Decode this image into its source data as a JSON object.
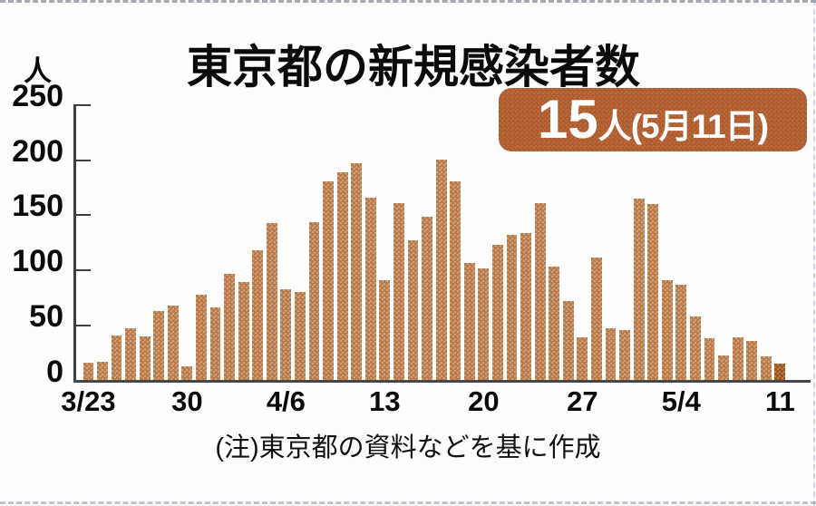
{
  "header": {
    "title": "東京都の新規感染者数",
    "badge_value": "15",
    "badge_suffix": "人(5月11日)"
  },
  "note": "(注)東京都の資料などを基に作成",
  "colors": {
    "bar": "#cb9268",
    "bar_highlight": "#c06a35",
    "badge_background": "#be6c3e",
    "badge_text": "#ffffff",
    "axis": "#3d3f43",
    "text": "#0a0a0a"
  },
  "chart_data": {
    "type": "bar",
    "title": "東京都の新規感染者数",
    "xlabel": "",
    "ylabel": "人",
    "ylim": [
      0,
      250
    ],
    "grid": false,
    "legend": false,
    "x": [
      "3/23",
      "3/24",
      "3/25",
      "3/26",
      "3/27",
      "3/28",
      "3/29",
      "3/30",
      "3/31",
      "4/1",
      "4/2",
      "4/3",
      "4/4",
      "4/5",
      "4/6",
      "4/7",
      "4/8",
      "4/9",
      "4/10",
      "4/11",
      "4/12",
      "4/13",
      "4/14",
      "4/15",
      "4/16",
      "4/17",
      "4/18",
      "4/19",
      "4/20",
      "4/21",
      "4/22",
      "4/23",
      "4/24",
      "4/25",
      "4/26",
      "4/27",
      "4/28",
      "4/29",
      "4/30",
      "5/1",
      "5/2",
      "5/3",
      "5/4",
      "5/5",
      "5/6",
      "5/7",
      "5/8",
      "5/9",
      "5/10",
      "5/11"
    ],
    "values": [
      16,
      17,
      41,
      47,
      40,
      63,
      68,
      13,
      78,
      66,
      97,
      89,
      118,
      143,
      83,
      80,
      144,
      181,
      189,
      197,
      166,
      91,
      161,
      127,
      149,
      201,
      181,
      107,
      102,
      123,
      132,
      134,
      161,
      103,
      72,
      39,
      112,
      47,
      46,
      165,
      160,
      91,
      87,
      58,
      38,
      23,
      39,
      36,
      22,
      15
    ],
    "highlight_index": 49,
    "annotation": "15人(5月11日)",
    "y_tick_labels": [
      "250",
      "200",
      "150",
      "100",
      "50",
      "0"
    ],
    "x_tick_labels": [
      "3/23",
      "30",
      "4/6",
      "13",
      "20",
      "27",
      "5/4",
      "11"
    ],
    "x_tick_positions": [
      0,
      7,
      14,
      21,
      28,
      35,
      42,
      49
    ]
  }
}
